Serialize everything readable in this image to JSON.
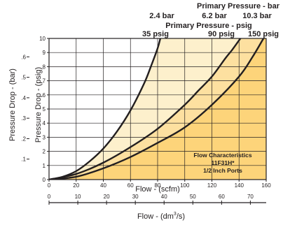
{
  "chart_data": {
    "type": "line",
    "xlabel": "Flow - (scfm)",
    "ylabel": "Pressure Drop - (psig)",
    "x_ticks": [
      "0",
      "20",
      "40",
      "60",
      "80",
      "100",
      "120",
      "140",
      "160"
    ],
    "y_ticks": [
      "0",
      "1",
      "2",
      "3",
      "4",
      "5",
      "6",
      "7",
      "8",
      "9",
      "10"
    ],
    "xlim": [
      0,
      160
    ],
    "ylim": [
      0,
      10
    ],
    "grid": true,
    "secondary_x": {
      "label": "Flow - (dm3/s)",
      "label_prefix": "Flow - (dm",
      "label_sup": "3",
      "label_suffix": "/s)",
      "ticks": [
        "0",
        "10",
        "20",
        "30",
        "40",
        "50",
        "60",
        "70"
      ],
      "lim": [
        0,
        75.5
      ]
    },
    "secondary_y": {
      "label": "Pressure Drop - (bar)",
      "ticks": [
        ".1",
        ".2",
        ".3",
        ".4",
        ".5",
        ".6"
      ],
      "values": [
        0.1,
        0.2,
        0.3,
        0.4,
        0.5,
        0.6
      ],
      "lim": [
        0,
        0.69
      ]
    },
    "pressure_bar_title": "Primary Pressure - bar",
    "pressure_psig_title": "Primary Pressure - psig",
    "series": [
      {
        "bar_label": "2.4 bar",
        "psig_label": "35 psig",
        "x": [
          0,
          10,
          20,
          30,
          40,
          50,
          60,
          70,
          75,
          80,
          82
        ],
        "y": [
          0,
          0.2,
          0.6,
          1.3,
          2.2,
          3.4,
          4.9,
          6.8,
          8.0,
          9.3,
          10
        ]
      },
      {
        "bar_label": "6.2 bar",
        "psig_label": "90 psig",
        "x": [
          0,
          20,
          40,
          60,
          80,
          100,
          110,
          120,
          130,
          135,
          141
        ],
        "y": [
          0,
          0.4,
          1.2,
          2.3,
          3.6,
          5.3,
          6.3,
          7.3,
          8.6,
          9.2,
          10
        ]
      },
      {
        "bar_label": "10.3 bar",
        "psig_label": "150 psig",
        "x": [
          0,
          20,
          40,
          60,
          80,
          100,
          120,
          140,
          150,
          158
        ],
        "y": [
          0,
          0.2,
          0.8,
          1.6,
          2.6,
          3.7,
          5.3,
          7.3,
          8.7,
          10
        ]
      }
    ],
    "annotation": [
      "Flow Characteristics",
      "11F31H*",
      "1/2 Inch Ports"
    ],
    "colors": {
      "line": "#231f20",
      "fill_light": "#fdf0cc",
      "fill_mid": "#fde0a0",
      "fill_dark": "#fdd47a",
      "grid": "#231f20"
    }
  }
}
